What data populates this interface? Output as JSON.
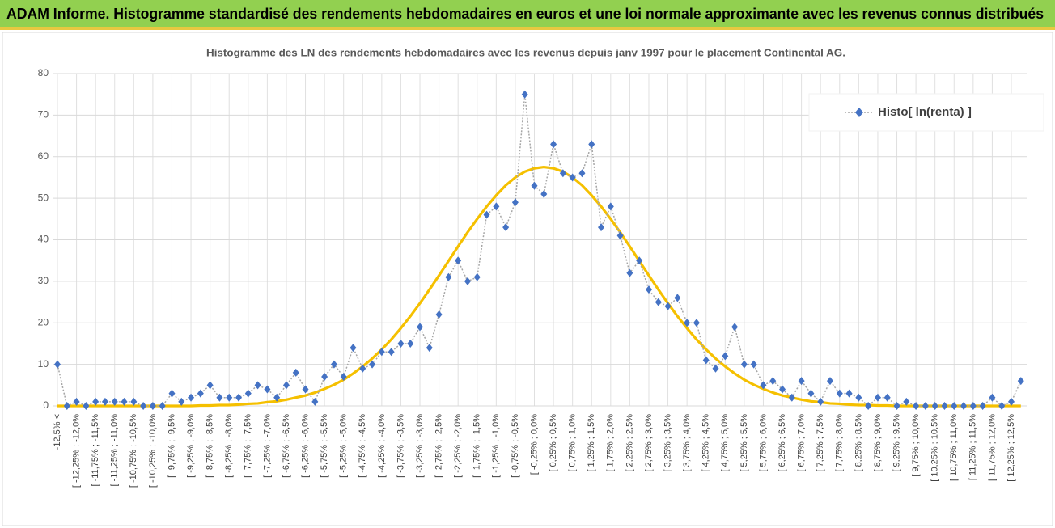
{
  "header": {
    "title": "ADAM Informe. Histogramme standardisé des rendements hebdomadaires en euros et une loi normale approximante avec les revenus connus distribués"
  },
  "chart_data": {
    "type": "line",
    "title": "Histogramme des LN des rendements hebdomadaires avec les revenus depuis janv 1997 pour le placement Continental AG.",
    "categories": [
      "-12,5% <",
      null,
      "[ -12,25% ; -12,0%",
      null,
      "[ -11,75% ; -11,5%",
      null,
      "[ -11,25% ; -11,0%",
      null,
      "[ -10,75% ; -10,5%",
      null,
      "[ -10,25% ; -10,0%",
      null,
      "[ -9,75% ; -9,5%",
      null,
      "[ -9,25% ; -9,0%",
      null,
      "[ -8,75% ; -8,5%",
      null,
      "[ -8,25% ; -8,0%",
      null,
      "[ -7,75% ; -7,5%",
      null,
      "[ -7,25% ; -7,0%",
      null,
      "[ -6,75% ; -6,5%",
      null,
      "[ -6,25% ; -6,0%",
      null,
      "[ -5,75% ; -5,5%",
      null,
      "[ -5,25% ; -5,0%",
      null,
      "[ -4,75% ; -4,5%",
      null,
      "[ -4,25% ; -4,0%",
      null,
      "[ -3,75% ; -3,5%",
      null,
      "[ -3,25% ; -3,0%",
      null,
      "[ -2,75% ; -2,5%",
      null,
      "[ -2,25% ; -2,0%",
      null,
      "[ -1,75% ; -1,5%",
      null,
      "[ -1,25% ; -1,0%",
      null,
      "[ -0,75% ; -0,5%",
      null,
      "[ -0,25% ; 0,0%",
      null,
      "[ 0,25% ; 0,5%",
      null,
      "[ 0,75% ; 1,0%",
      null,
      "[ 1,25% ; 1,5%",
      null,
      "[ 1,75% ; 2,0%",
      null,
      "[ 2,25% ; 2,5%",
      null,
      "[ 2,75% ; 3,0%",
      null,
      "[ 3,25% ; 3,5%",
      null,
      "[ 3,75% ; 4,0%",
      null,
      "[ 4,25% ; 4,5%",
      null,
      "[ 4,75% ; 5,0%",
      null,
      "[ 5,25% ; 5,5%",
      null,
      "[ 5,75% ; 6,0%",
      null,
      "[ 6,25% ; 6,5%",
      null,
      "[ 6,75% ; 7,0%",
      null,
      "[ 7,25% ; 7,5%",
      null,
      "[ 7,75% ; 8,0%",
      null,
      "[ 8,25% ; 8,5%",
      null,
      "[ 8,75% ; 9,0%",
      null,
      "[ 9,25% ; 9,5%",
      null,
      "[ 9,75% ; 10,0%",
      null,
      "[ 10,25% ; 10,5%",
      null,
      "[ 10,75% ; 11,0%",
      null,
      "[ 11,25% ; 11,5%",
      null,
      "[ 11,75% ; 12,0%",
      null,
      "[ 12,25% ; 12,5%",
      null
    ],
    "series": [
      {
        "name": "Histo[ ln(renta) ]",
        "color": "#4472c4",
        "values": [
          10,
          0,
          1,
          0,
          1,
          1,
          1,
          1,
          1,
          0,
          0,
          0,
          3,
          1,
          2,
          3,
          5,
          2,
          2,
          2,
          3,
          5,
          4,
          2,
          5,
          8,
          4,
          1,
          7,
          10,
          7,
          14,
          9,
          10,
          13,
          13,
          15,
          15,
          19,
          14,
          22,
          31,
          35,
          30,
          31,
          46,
          48,
          43,
          49,
          75,
          53,
          51,
          63,
          56,
          55,
          56,
          63,
          43,
          48,
          41,
          32,
          35,
          28,
          25,
          24,
          26,
          20,
          20,
          11,
          9,
          12,
          19,
          10,
          10,
          5,
          6,
          4,
          2,
          6,
          3,
          1,
          6,
          3,
          3,
          2,
          0,
          2,
          2,
          0,
          1,
          0,
          0,
          0,
          0,
          0,
          0,
          0,
          0,
          2,
          0,
          1,
          6
        ]
      },
      {
        "color": "#f5c000",
        "values": [
          0,
          0,
          0,
          0,
          0,
          0,
          0,
          0,
          0,
          0,
          0,
          0,
          0,
          0,
          0,
          0.1,
          0.1,
          0.2,
          0.2,
          0.3,
          0.5,
          0.6,
          0.9,
          1.1,
          1.5,
          2.0,
          2.5,
          3.2,
          4.1,
          5.1,
          6.3,
          7.8,
          9.5,
          11.4,
          13.6,
          16.0,
          18.7,
          21.6,
          24.7,
          28.0,
          31.4,
          34.9,
          38.4,
          41.8,
          45.0,
          48.0,
          50.7,
          53.1,
          55.0,
          56.4,
          57.2,
          57.5,
          57.2,
          56.4,
          55.0,
          53.1,
          50.7,
          48.0,
          45.0,
          41.8,
          38.4,
          34.9,
          31.4,
          28.0,
          24.7,
          21.6,
          18.7,
          16.0,
          13.6,
          11.4,
          9.5,
          7.8,
          6.3,
          5.1,
          4.1,
          3.2,
          2.5,
          2.0,
          1.5,
          1.1,
          0.9,
          0.6,
          0.5,
          0.3,
          0.2,
          0.2,
          0.1,
          0.1,
          0,
          0,
          0,
          0,
          0,
          0,
          0,
          0,
          0,
          0,
          0,
          0,
          0,
          0
        ]
      }
    ],
    "ylim": [
      0,
      80
    ],
    "yticks": [
      0,
      10,
      20,
      30,
      40,
      50,
      60,
      70,
      80
    ],
    "grid": true,
    "legend": "upper right"
  }
}
